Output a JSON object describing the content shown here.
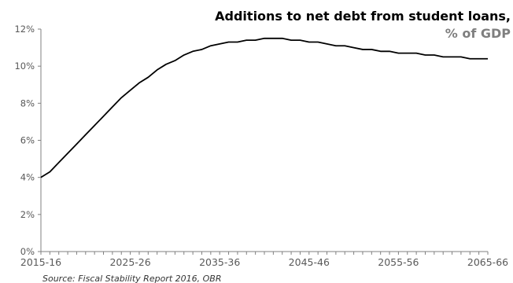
{
  "chart_data": {
    "type": "line",
    "title": "Additions to net debt from student loans,",
    "subtitle": "% of GDP",
    "source": "Source: Fiscal Stability Report 2016, OBR",
    "xlabel": "",
    "ylabel": "",
    "ylim": [
      0,
      12
    ],
    "y_ticks": [
      "0%",
      "2%",
      "4%",
      "6%",
      "8%",
      "10%",
      "12%"
    ],
    "x_tick_labels": [
      "2015-16",
      "2025-26",
      "2035-36",
      "2045-46",
      "2055-56",
      "2065-66"
    ],
    "grid": false,
    "legend": "none",
    "colors": {
      "line": "#000000",
      "title": "#000000",
      "subtitle": "#7f7f7f",
      "axis": "#808080",
      "tick_text": "#595959"
    },
    "x": [
      "2015-16",
      "2016-17",
      "2017-18",
      "2018-19",
      "2019-20",
      "2020-21",
      "2021-22",
      "2022-23",
      "2023-24",
      "2024-25",
      "2025-26",
      "2026-27",
      "2027-28",
      "2028-29",
      "2029-30",
      "2030-31",
      "2031-32",
      "2032-33",
      "2033-34",
      "2034-35",
      "2035-36",
      "2036-37",
      "2037-38",
      "2038-39",
      "2039-40",
      "2040-41",
      "2041-42",
      "2042-43",
      "2043-44",
      "2044-45",
      "2045-46",
      "2046-47",
      "2047-48",
      "2048-49",
      "2049-50",
      "2050-51",
      "2051-52",
      "2052-53",
      "2053-54",
      "2054-55",
      "2055-56",
      "2056-57",
      "2057-58",
      "2058-59",
      "2059-60",
      "2060-61",
      "2061-62",
      "2062-63",
      "2063-64",
      "2064-65",
      "2065-66"
    ],
    "series": [
      {
        "values": [
          4.0,
          4.3,
          4.8,
          5.3,
          5.8,
          6.3,
          6.8,
          7.3,
          7.8,
          8.3,
          8.7,
          9.1,
          9.4,
          9.8,
          10.1,
          10.3,
          10.6,
          10.8,
          10.9,
          11.1,
          11.2,
          11.3,
          11.3,
          11.4,
          11.4,
          11.5,
          11.5,
          11.5,
          11.4,
          11.4,
          11.3,
          11.3,
          11.2,
          11.1,
          11.1,
          11.0,
          10.9,
          10.9,
          10.8,
          10.8,
          10.7,
          10.7,
          10.7,
          10.6,
          10.6,
          10.5,
          10.5,
          10.5,
          10.4,
          10.4,
          10.4
        ]
      }
    ]
  }
}
